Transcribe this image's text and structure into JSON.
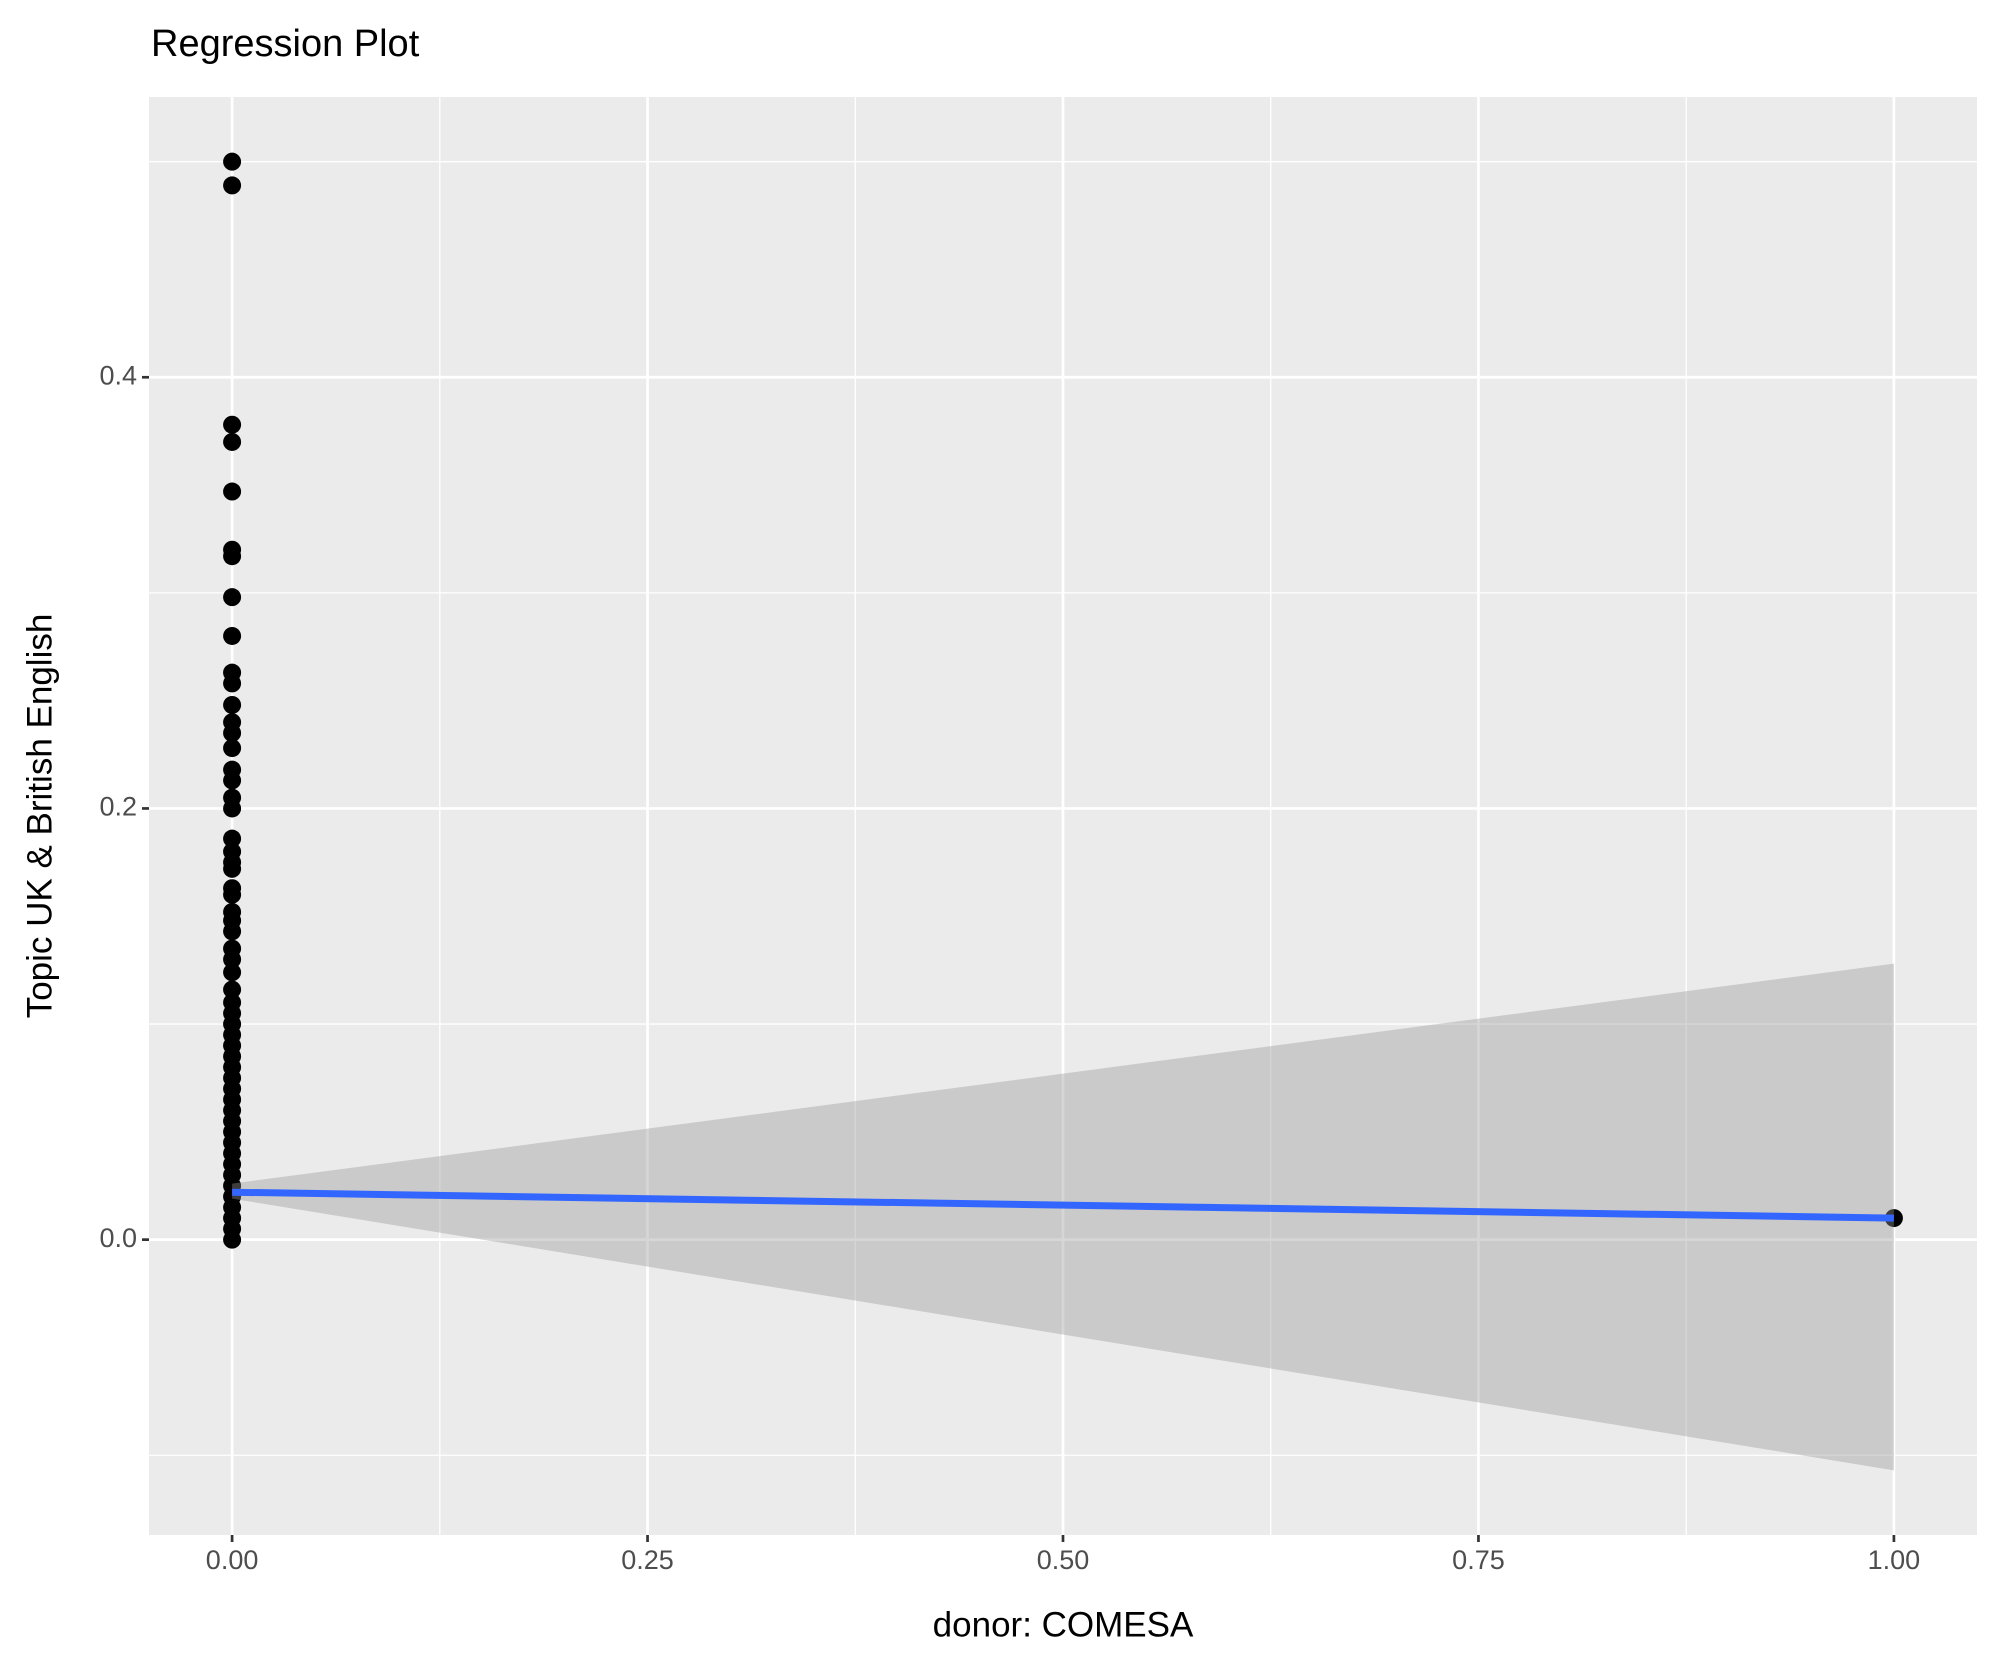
{
  "chart_data": {
    "type": "scatter",
    "title": "Regression Plot",
    "x_label": "donor: COMESA",
    "y_label": "Topic UK & British English",
    "xlim": [
      -0.05,
      1.05
    ],
    "ylim": [
      -0.137,
      0.53
    ],
    "xticks": [
      {
        "value": 0,
        "label": "0.00"
      },
      {
        "value": 0.25,
        "label": "0.25"
      },
      {
        "value": 0.5,
        "label": "0.50"
      },
      {
        "value": 0.75,
        "label": "0.75"
      },
      {
        "value": 1,
        "label": "1.00"
      }
    ],
    "yticks": [
      {
        "value": 0,
        "label": "0.0"
      },
      0.2,
      0.4
    ],
    "xminor": [
      0.125,
      0.375,
      0.625,
      0.875
    ],
    "yminor": [
      -0.1,
      0.1,
      0.3,
      0.5
    ],
    "grid": true,
    "point_color": "#000000",
    "points": {
      "x": [
        0,
        0,
        0,
        0,
        0,
        0,
        0,
        0,
        0,
        0,
        0,
        0,
        0,
        0,
        0,
        0,
        0,
        0,
        0,
        0,
        0,
        0,
        0,
        0,
        0,
        0,
        0,
        0,
        0,
        0,
        0,
        0,
        0,
        0,
        0,
        0,
        0,
        0,
        0,
        0,
        0,
        0,
        0,
        0,
        0,
        0,
        0,
        0,
        0,
        0,
        0,
        0,
        0,
        0,
        0,
        1
      ],
      "y": [
        0.5,
        0.489,
        0.378,
        0.37,
        0.347,
        0.32,
        0.317,
        0.298,
        0.28,
        0.263,
        0.258,
        0.248,
        0.24,
        0.235,
        0.228,
        0.218,
        0.213,
        0.205,
        0.2,
        0.186,
        0.18,
        0.175,
        0.172,
        0.163,
        0.16,
        0.152,
        0.148,
        0.143,
        0.135,
        0.13,
        0.124,
        0.116,
        0.11,
        0.105,
        0.1,
        0.095,
        0.09,
        0.085,
        0.08,
        0.075,
        0.07,
        0.065,
        0.06,
        0.055,
        0.05,
        0.045,
        0.04,
        0.035,
        0.03,
        0.025,
        0.02,
        0.015,
        0.01,
        0.005,
        0,
        0.01
      ]
    },
    "fit": {
      "color": "#3366ff",
      "band_color": "#999999",
      "x": [
        0,
        1
      ],
      "values": [
        0.022,
        0.01
      ],
      "lower": [
        0.019,
        -0.107
      ],
      "upper": [
        0.026,
        0.128
      ]
    }
  }
}
